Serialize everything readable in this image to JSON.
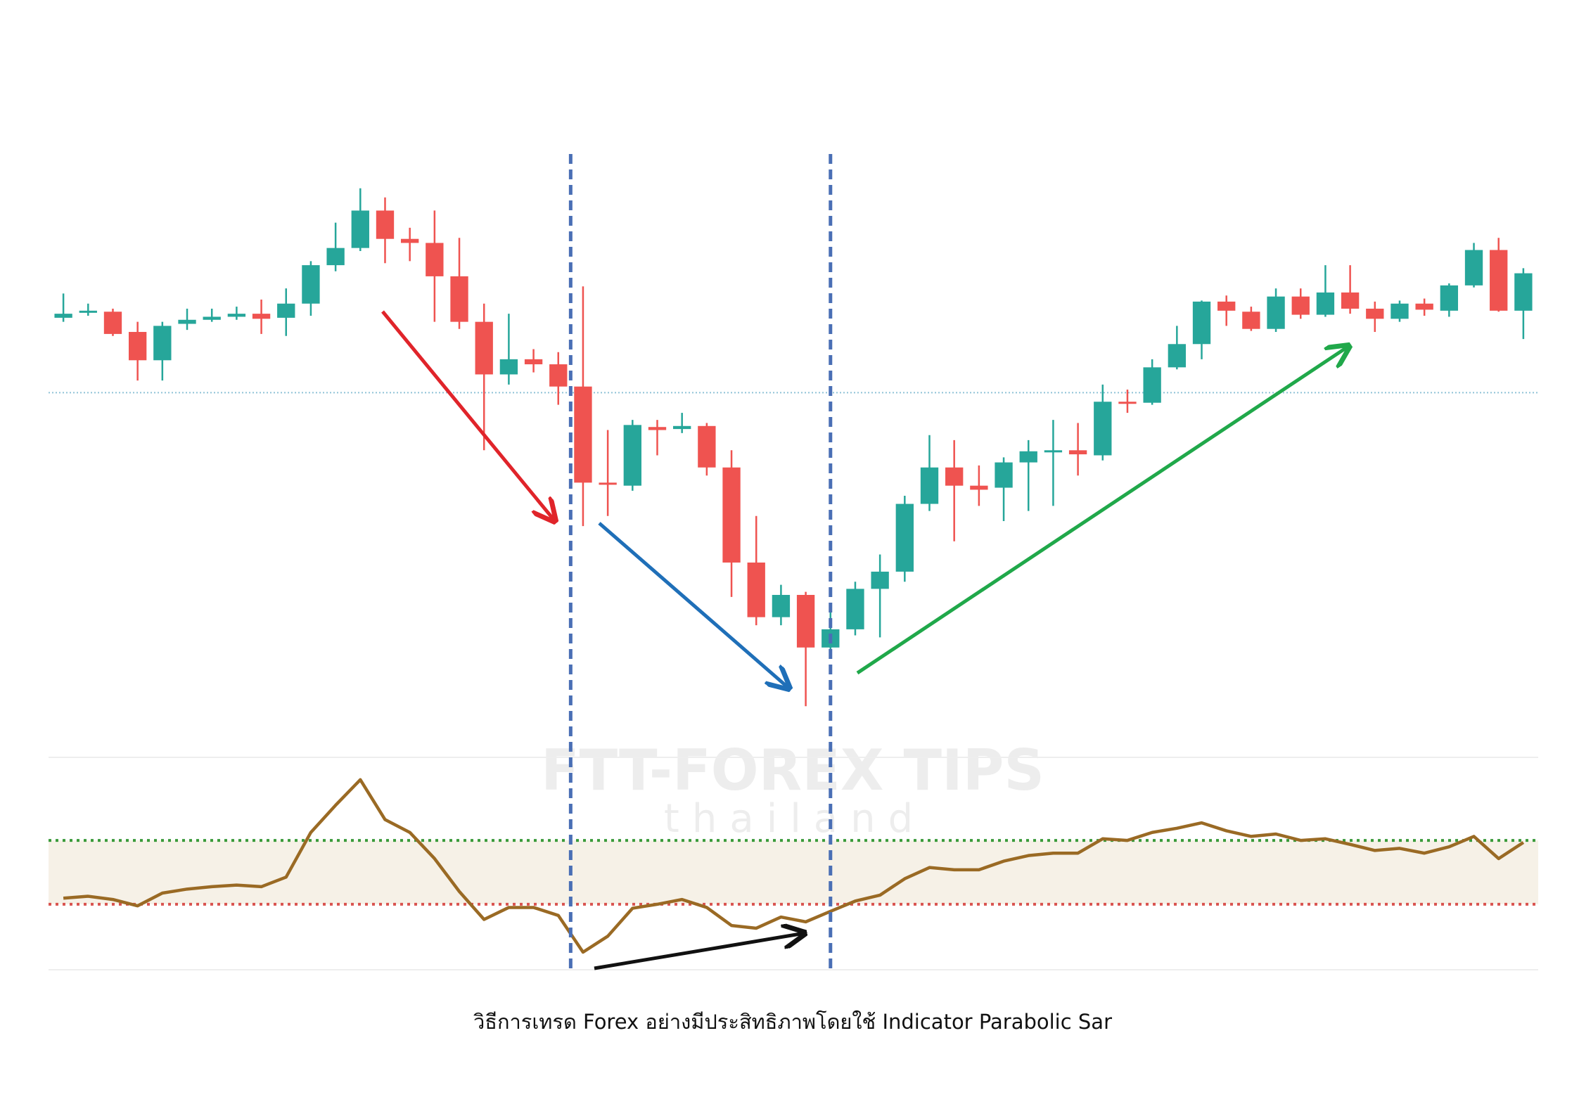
{
  "caption": "วิธีการเทรด Forex อย่างมีประสิทธิภาพโดยใช้ Indicator  Parabolic Sar",
  "watermark": {
    "title": "FTT-FOREX TIPS",
    "subtitle": "thailand"
  },
  "chart_data": [
    {
      "type": "candlestick",
      "x": [
        0,
        1,
        2,
        3,
        4,
        5,
        6,
        7,
        8,
        9,
        10,
        11,
        12,
        13,
        14,
        15,
        16,
        17,
        18,
        19,
        20,
        21,
        22,
        23,
        24,
        25,
        26,
        27,
        28,
        29,
        30,
        31,
        32,
        33,
        34,
        35,
        36,
        37,
        38,
        39,
        40,
        41,
        42,
        43,
        44,
        45,
        46,
        47,
        48,
        49,
        50,
        51,
        52,
        53,
        54,
        55,
        56,
        57,
        58,
        59
      ],
      "open": [
        436,
        441,
        442,
        422,
        394,
        430,
        434,
        437,
        440,
        436,
        450,
        488,
        505,
        542,
        514,
        510,
        477,
        432,
        380,
        395,
        390,
        368,
        273,
        270,
        328,
        326,
        329,
        288,
        194,
        140,
        162,
        110,
        128,
        168,
        185,
        252,
        288,
        270,
        268,
        293,
        303,
        305,
        300,
        353,
        352,
        387,
        410,
        452,
        442,
        425,
        457,
        439,
        461,
        445,
        435,
        450,
        443,
        468,
        503,
        443
      ],
      "high": [
        460,
        450,
        445,
        432,
        432,
        445,
        445,
        447,
        454,
        465,
        492,
        530,
        564,
        555,
        525,
        542,
        515,
        450,
        440,
        405,
        402,
        467,
        325,
        335,
        335,
        342,
        332,
        305,
        240,
        172,
        165,
        150,
        175,
        202,
        260,
        320,
        315,
        290,
        298,
        315,
        335,
        332,
        370,
        365,
        395,
        428,
        453,
        458,
        447,
        465,
        465,
        488,
        488,
        452,
        453,
        455,
        470,
        510,
        515,
        485
      ],
      "low": [
        432,
        438,
        418,
        374,
        374,
        424,
        432,
        434,
        420,
        418,
        438,
        482,
        502,
        490,
        492,
        432,
        425,
        305,
        370,
        382,
        350,
        230,
        240,
        265,
        300,
        322,
        280,
        160,
        132,
        132,
        52,
        100,
        122,
        120,
        175,
        245,
        215,
        250,
        235,
        245,
        250,
        280,
        295,
        342,
        350,
        385,
        395,
        428,
        423,
        422,
        435,
        437,
        440,
        422,
        432,
        438,
        437,
        466,
        442,
        415
      ],
      "close": [
        440,
        443,
        420,
        394,
        428,
        434,
        437,
        440,
        435,
        450,
        488,
        505,
        542,
        514,
        510,
        477,
        432,
        380,
        395,
        390,
        368,
        273,
        271,
        330,
        325,
        329,
        288,
        194,
        140,
        162,
        110,
        128,
        168,
        185,
        252,
        288,
        270,
        266,
        293,
        304,
        305,
        301,
        353,
        351,
        387,
        410,
        452,
        443,
        425,
        457,
        439,
        461,
        445,
        435,
        450,
        444,
        468,
        503,
        443,
        480
      ],
      "up_color": "#26a69a",
      "down_color": "#ef5350",
      "xlim": [
        -0.6,
        59.6
      ],
      "ylim": [
        0,
        600
      ],
      "hline": 362,
      "hline_color": "#8fc3d6",
      "vlines": [
        20.5,
        31
      ],
      "vline_color": "#4a6fb5"
    },
    {
      "type": "line",
      "x": [
        0,
        1,
        2,
        3,
        4,
        5,
        6,
        7,
        8,
        9,
        10,
        11,
        12,
        13,
        14,
        15,
        16,
        17,
        18,
        19,
        20,
        21,
        22,
        23,
        24,
        25,
        26,
        27,
        28,
        29,
        30,
        31,
        32,
        33,
        34,
        35,
        36,
        37,
        38,
        39,
        40,
        41,
        42,
        43,
        44,
        45,
        46,
        47,
        48,
        49,
        50,
        51,
        52,
        53,
        54,
        55,
        56,
        57,
        58,
        59
      ],
      "values": [
        33.8,
        35,
        33,
        29,
        37,
        39.5,
        41,
        42,
        41,
        47,
        75,
        92,
        108,
        83,
        75,
        58.6,
        38,
        20.5,
        28,
        28,
        23,
        0,
        10,
        27.5,
        30,
        33,
        28,
        16.7,
        15,
        22,
        19,
        25.6,
        32,
        35.7,
        46,
        53,
        51.6,
        51.6,
        57,
        60.5,
        62,
        62,
        71,
        70,
        75,
        77.6,
        81,
        76,
        72.5,
        74,
        70,
        71,
        67.5,
        63.7,
        65,
        62,
        66,
        72.5,
        58.6,
        68.7
      ],
      "color": "#9a6a24",
      "xlim": [
        -0.6,
        59.6
      ],
      "ylim": [
        -11,
        122
      ],
      "levels": [
        70,
        30
      ],
      "level_colors": [
        "#3a9a3a",
        "#d9534f"
      ],
      "band_color": "#f6f1e7"
    }
  ]
}
